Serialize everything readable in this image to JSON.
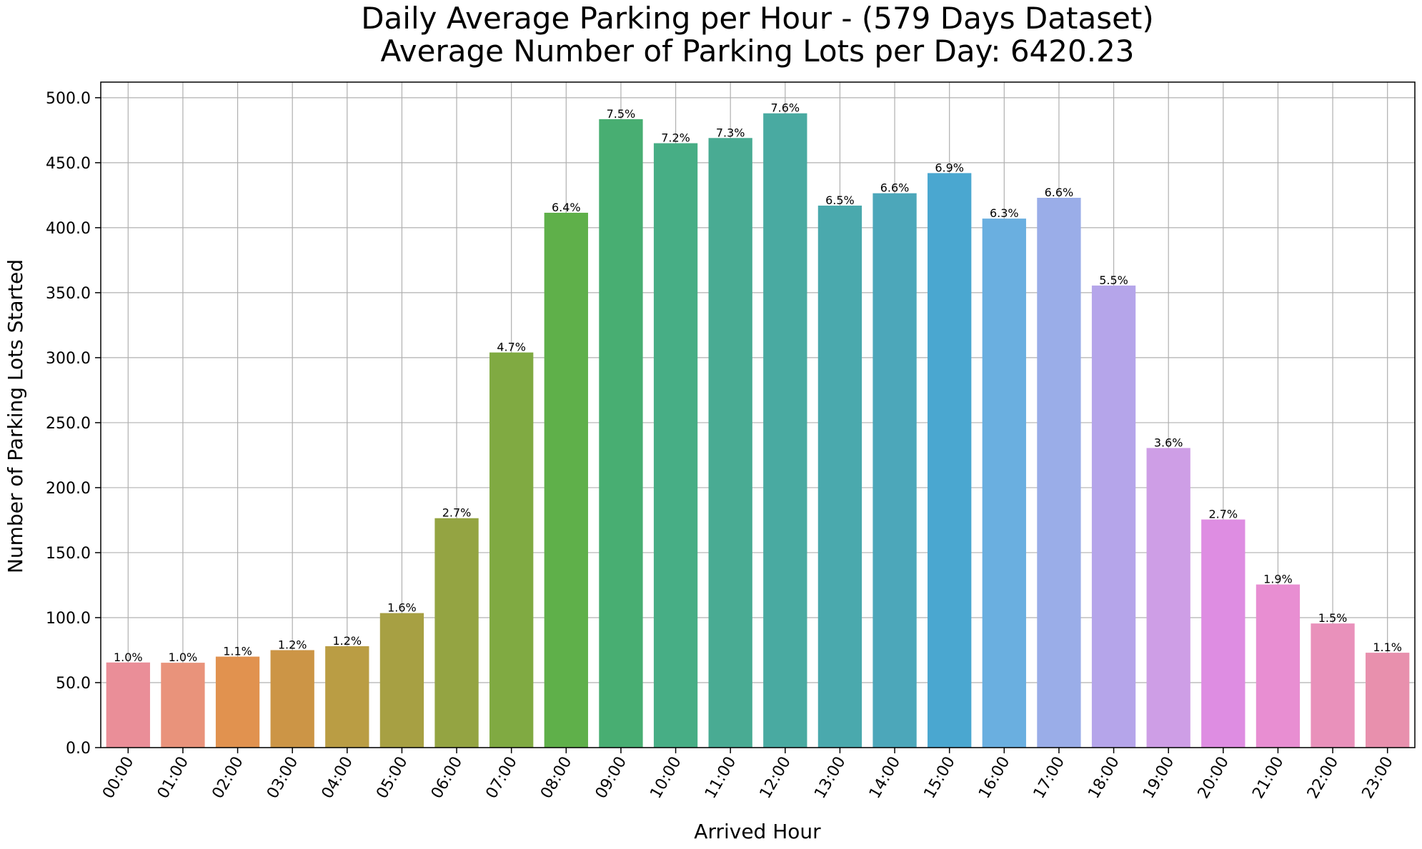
{
  "chart_data": {
    "type": "bar",
    "title": "Daily Average Parking per Hour - (579 Days Dataset)",
    "subtitle": "Average Number of Parking Lots per Day: 6420.23",
    "xlabel": "Arrived Hour",
    "ylabel": "Number of Parking Lots Started",
    "ylim": [
      0,
      512
    ],
    "yticks": [
      0,
      50,
      100,
      150,
      200,
      250,
      300,
      350,
      400,
      450,
      500
    ],
    "ytick_labels": [
      "0.0",
      "50.0",
      "100.0",
      "150.0",
      "200.0",
      "250.0",
      "300.0",
      "350.0",
      "400.0",
      "450.0",
      "500.0"
    ],
    "grid": true,
    "categories": [
      "00:00",
      "01:00",
      "02:00",
      "03:00",
      "04:00",
      "05:00",
      "06:00",
      "07:00",
      "08:00",
      "09:00",
      "10:00",
      "11:00",
      "12:00",
      "13:00",
      "14:00",
      "15:00",
      "16:00",
      "17:00",
      "18:00",
      "19:00",
      "20:00",
      "21:00",
      "22:00",
      "23:00"
    ],
    "values": [
      65.5,
      65.3,
      70.0,
      75.0,
      78.0,
      103.5,
      176.5,
      304.0,
      411.5,
      483.5,
      465.0,
      469.0,
      488.0,
      417.0,
      426.5,
      442.0,
      407.0,
      423.0,
      355.5,
      230.5,
      175.5,
      125.5,
      95.5,
      73.0
    ],
    "labels": [
      "1.0%",
      "1.0%",
      "1.1%",
      "1.2%",
      "1.2%",
      "1.6%",
      "2.7%",
      "4.7%",
      "6.4%",
      "7.5%",
      "7.2%",
      "7.3%",
      "7.6%",
      "6.5%",
      "6.6%",
      "6.9%",
      "6.3%",
      "6.6%",
      "5.5%",
      "3.6%",
      "2.7%",
      "1.9%",
      "1.5%",
      "1.1%"
    ],
    "colors": [
      "#EA8E98",
      "#E9937B",
      "#E1924F",
      "#CC9546",
      "#BA9D44",
      "#A7A043",
      "#94A442",
      "#80AA42",
      "#5FB04A",
      "#48AE72",
      "#47AE85",
      "#49AB93",
      "#49AAA1",
      "#4AA9AD",
      "#4CA7BA",
      "#4AA7D0",
      "#6AAFE0",
      "#9AADE8",
      "#B5A5EA",
      "#CE9EE6",
      "#DE8DE2",
      "#E88ED2",
      "#E991BB",
      "#E890AD"
    ]
  }
}
